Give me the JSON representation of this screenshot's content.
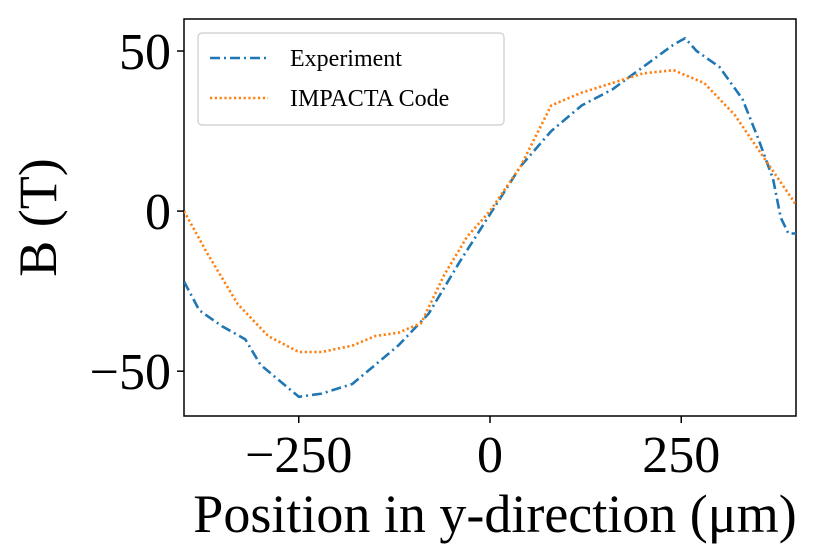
{
  "chart_data": {
    "type": "line",
    "title": "",
    "xlabel": "Position in y-direction (μm)",
    "ylabel": "B (T)",
    "xlim": [
      -400,
      400
    ],
    "ylim": [
      -64,
      60
    ],
    "xticks": [
      -250,
      0,
      250
    ],
    "xtick_labels": [
      "−250",
      "0",
      "250"
    ],
    "yticks": [
      -50,
      0,
      50
    ],
    "ytick_labels": [
      "−50",
      "0",
      "50"
    ],
    "grid": false,
    "legend_position": "top-left",
    "series": [
      {
        "name": "Experiment",
        "color": "#1f77b4",
        "style": "dashdot",
        "x": [
          -400,
          -380,
          -350,
          -320,
          -300,
          -280,
          -250,
          -220,
          -180,
          -150,
          -120,
          -80,
          -40,
          0,
          40,
          80,
          120,
          160,
          200,
          240,
          255,
          270,
          300,
          330,
          350,
          370,
          380,
          390,
          400
        ],
        "y": [
          -22,
          -31,
          -36,
          -40,
          -48,
          -52,
          -58,
          -57,
          -54,
          -48,
          -42,
          -32,
          -16,
          -1,
          14,
          25,
          33,
          38,
          45,
          52,
          54,
          50,
          45,
          35,
          23,
          10,
          -2,
          -7,
          -7
        ]
      },
      {
        "name": "IMPACTA Code",
        "color": "#ff7f0e",
        "style": "dotted",
        "x": [
          -400,
          -370,
          -330,
          -290,
          -250,
          -220,
          -180,
          -150,
          -120,
          -90,
          -60,
          -30,
          0,
          40,
          80,
          120,
          160,
          200,
          240,
          280,
          320,
          360,
          400
        ],
        "y": [
          0,
          -13,
          -29,
          -39,
          -44,
          -44,
          -42,
          -39,
          -38,
          -35,
          -20,
          -8,
          0,
          14,
          33,
          37,
          40,
          43,
          44,
          40,
          30,
          16,
          2
        ]
      }
    ]
  }
}
